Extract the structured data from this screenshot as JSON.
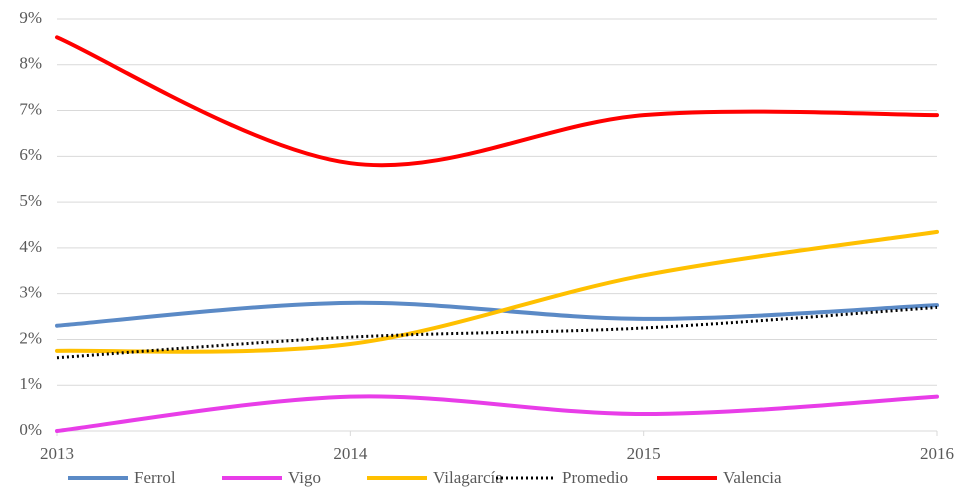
{
  "chart_data": {
    "type": "line",
    "x": [
      2013,
      2014,
      2015,
      2016
    ],
    "xlim": [
      2013,
      2016
    ],
    "xticks": [
      2013,
      2014,
      2015,
      2016
    ],
    "ylim": [
      0,
      9
    ],
    "yticks": [
      {
        "value": 0,
        "label": "0%"
      },
      {
        "value": 1,
        "label": "1%"
      },
      {
        "value": 2,
        "label": "2%"
      },
      {
        "value": 3,
        "label": "3%"
      },
      {
        "value": 4,
        "label": "4%"
      },
      {
        "value": 5,
        "label": "5%"
      },
      {
        "value": 6,
        "label": "6%"
      },
      {
        "value": 7,
        "label": "7%"
      },
      {
        "value": 8,
        "label": "8%"
      },
      {
        "value": 9,
        "label": "9%"
      }
    ],
    "grid": true,
    "smooth": true,
    "legend": "bottom",
    "series": [
      {
        "name": "Ferrol",
        "color": "#5b8ac6",
        "values": [
          2.3,
          2.8,
          2.45,
          2.75
        ]
      },
      {
        "name": "Vigo",
        "color": "#e83de8",
        "values": [
          0,
          0.75,
          0.37,
          0.75
        ]
      },
      {
        "name": "Vilagarcía",
        "color": "#ffc000",
        "values": [
          1.75,
          1.9,
          3.4,
          4.35
        ]
      },
      {
        "name": "Promedio",
        "color": "#000000",
        "dash": "dotted",
        "values": [
          1.6,
          2.05,
          2.25,
          2.7
        ]
      },
      {
        "name": "Valencia",
        "color": "#ff0000",
        "values": [
          8.6,
          5.85,
          6.9,
          6.9
        ]
      }
    ]
  }
}
